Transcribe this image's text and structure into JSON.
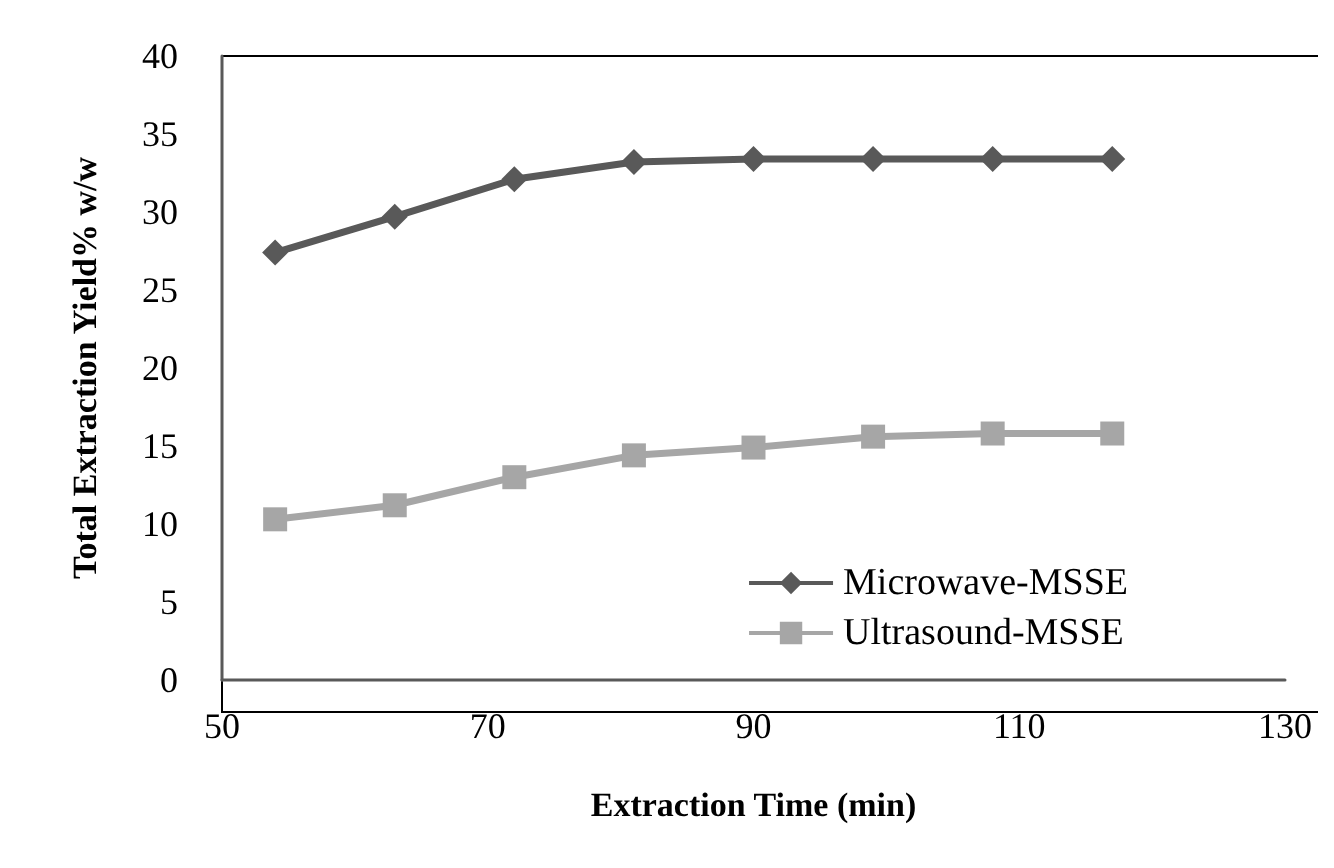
{
  "chart_data": {
    "type": "line",
    "xlabel": "Extraction Time (min)",
    "ylabel": "Total Extraction Yield% w/w",
    "x": [
      54,
      63,
      72,
      81,
      90,
      99,
      108,
      117
    ],
    "series": [
      {
        "name": "Microwave-MSSE",
        "color": "#595959",
        "marker": "diamond",
        "values": [
          27.4,
          29.7,
          32.1,
          33.2,
          33.4,
          33.4,
          33.4,
          33.4
        ]
      },
      {
        "name": "Ultrasound-MSSE",
        "color": "#a6a6a6",
        "marker": "square",
        "values": [
          10.3,
          11.2,
          13.0,
          14.4,
          14.9,
          15.6,
          15.8,
          15.8
        ]
      }
    ],
    "xlim": [
      50,
      130
    ],
    "xticks": [
      50,
      70,
      90,
      110,
      130
    ],
    "ylim": [
      0,
      40
    ],
    "yticks": [
      0,
      5,
      10,
      15,
      20,
      25,
      30,
      35,
      40
    ],
    "grid": false,
    "legend": "bottom right",
    "line_style": "solid"
  }
}
